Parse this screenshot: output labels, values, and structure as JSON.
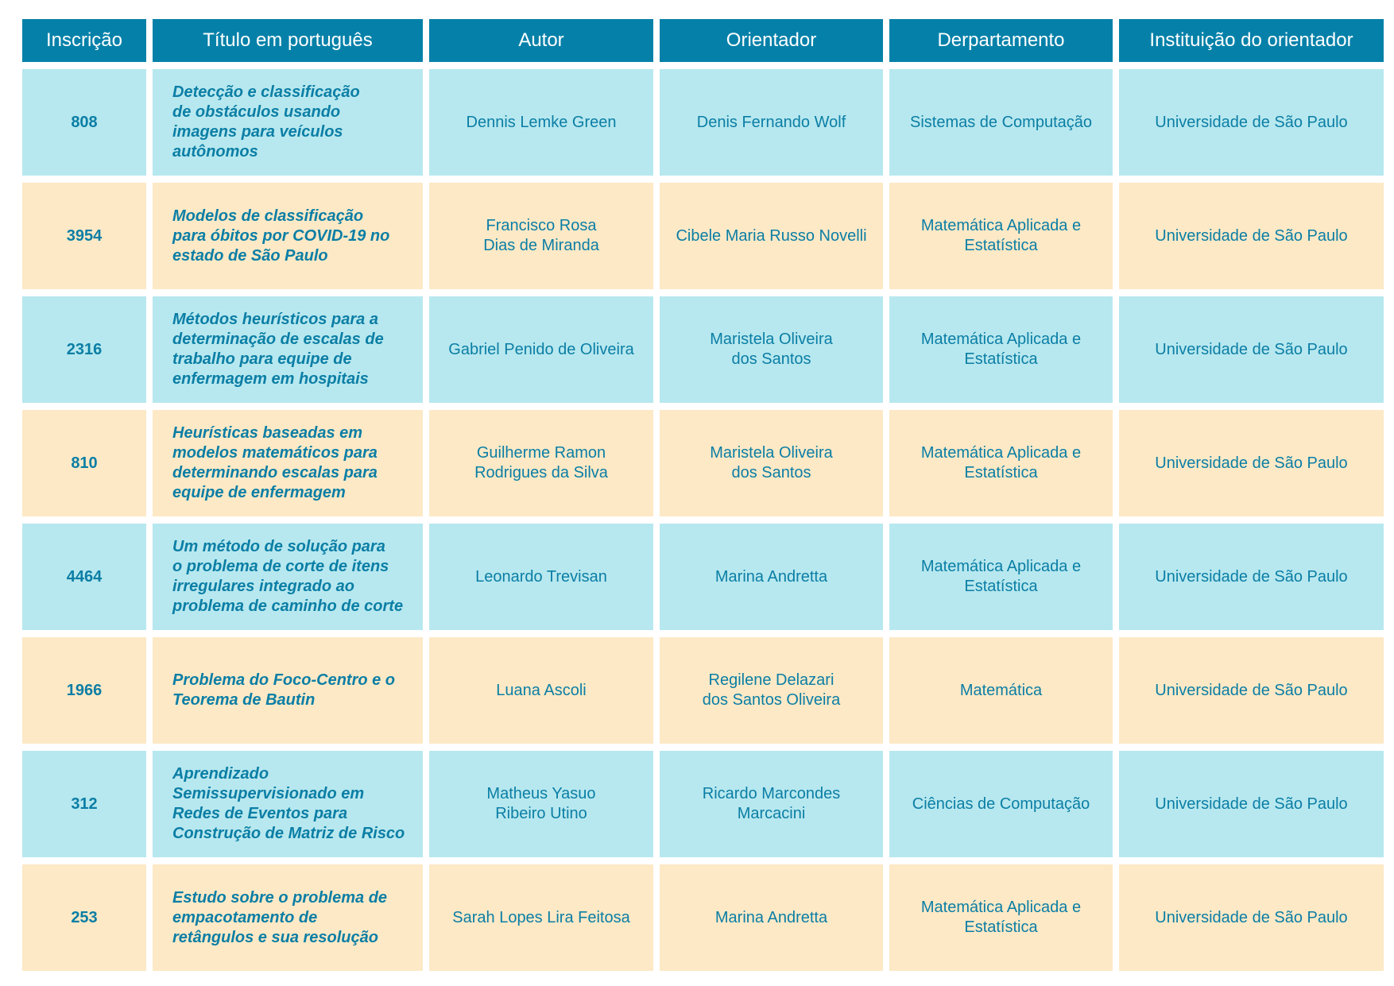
{
  "headers": [
    "Inscrição",
    "Título em português",
    "Autor",
    "Orientador",
    "Derpartamento",
    "Instituição do orientador"
  ],
  "rows": [
    {
      "inscricao": "808",
      "titulo": "Detecção e classificação\nde obstáculos usando\nimagens para veículos\nautônomos",
      "autor": "Dennis Lemke Green",
      "orientador": "Denis Fernando Wolf",
      "departamento": "Sistemas de Computação",
      "instituicao": "Universidade de São Paulo"
    },
    {
      "inscricao": "3954",
      "titulo": "Modelos de classificação\npara óbitos por COVID-19 no\nestado de São Paulo",
      "autor": "Francisco Rosa\nDias de Miranda",
      "orientador": "Cibele Maria Russo Novelli",
      "departamento": "Matemática Aplicada e\nEstatística",
      "instituicao": "Universidade de São Paulo"
    },
    {
      "inscricao": "2316",
      "titulo": "Métodos heurísticos para a\ndeterminação de escalas de\ntrabalho para equipe de\nenfermagem em hospitais",
      "autor": "Gabriel Penido de Oliveira",
      "orientador": "Maristela Oliveira\ndos Santos",
      "departamento": "Matemática Aplicada e\nEstatística",
      "instituicao": "Universidade de São Paulo"
    },
    {
      "inscricao": "810",
      "titulo": "Heurísticas baseadas em\nmodelos matemáticos para\ndeterminando escalas para\nequipe de enfermagem",
      "autor": "Guilherme Ramon\nRodrigues da Silva",
      "orientador": "Maristela Oliveira\ndos Santos",
      "departamento": "Matemática Aplicada e\nEstatística",
      "instituicao": "Universidade de São Paulo"
    },
    {
      "inscricao": "4464",
      "titulo": "Um método de solução para\no problema de corte de itens\nirregulares integrado ao\nproblema de caminho de corte",
      "autor": "Leonardo Trevisan",
      "orientador": "Marina Andretta",
      "departamento": "Matemática Aplicada e\nEstatística",
      "instituicao": "Universidade de São Paulo"
    },
    {
      "inscricao": "1966",
      "titulo": "Problema do Foco-Centro e o\nTeorema de Bautin",
      "autor": "Luana Ascoli",
      "orientador": "Regilene Delazari\ndos Santos Oliveira",
      "departamento": "Matemática",
      "instituicao": "Universidade de São Paulo"
    },
    {
      "inscricao": "312",
      "titulo": "Aprendizado\nSemissupervisionado em\nRedes de Eventos para\nConstrução de Matriz de Risco",
      "autor": "Matheus Yasuo\nRibeiro Utino",
      "orientador": "Ricardo Marcondes\nMarcacini",
      "departamento": "Ciências de Computação",
      "instituicao": "Universidade de São Paulo"
    },
    {
      "inscricao": "253",
      "titulo": "Estudo sobre o problema de\nempacotamento de\nretângulos e sua resolução",
      "autor": "Sarah Lopes Lira Feitosa",
      "orientador": "Marina Andretta",
      "departamento": "Matemática Aplicada e\nEstatística",
      "instituicao": "Universidade de São Paulo"
    }
  ],
  "colors": {
    "header_bg": "#0581a9",
    "header_text": "#ffffff",
    "row_blue": "#b7e8ef",
    "row_cream": "#fde9c6",
    "cell_text": "#0b7ea5"
  }
}
